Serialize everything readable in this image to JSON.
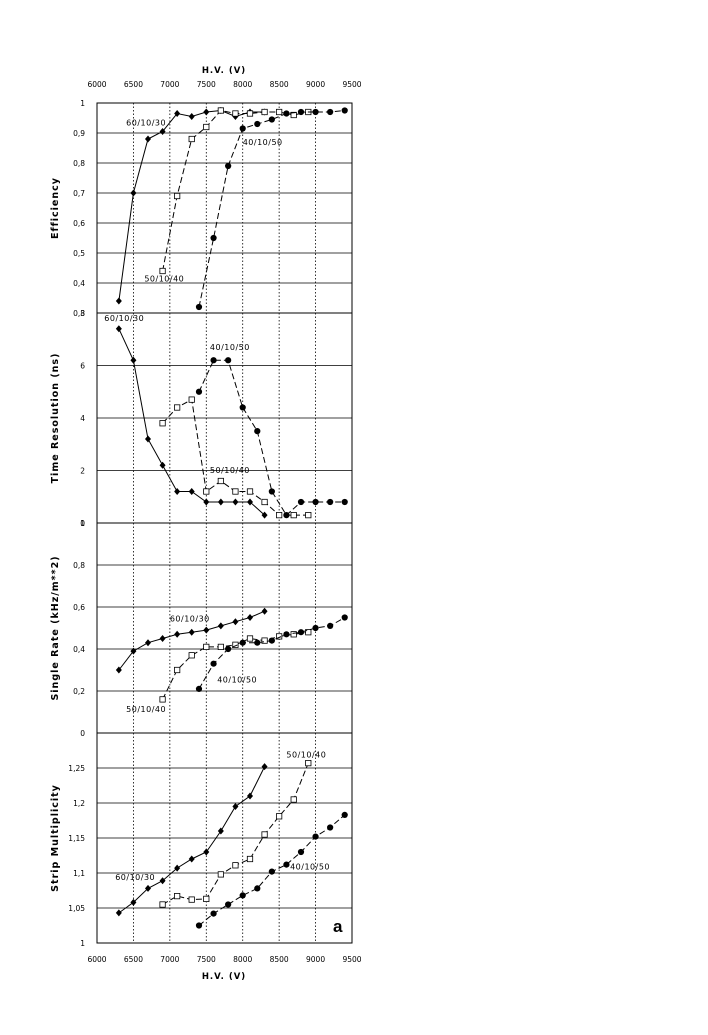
{
  "figure": {
    "x_title_top": "H.V.   (V)",
    "x_title_bottom": "H.V.   (V)",
    "panel_letter": "a",
    "x_ticks": [
      6000,
      6500,
      7000,
      7500,
      8000,
      8500,
      9000,
      9500
    ]
  },
  "chart_data": [
    {
      "type": "line",
      "ylabel": "Efficiency",
      "xlim": [
        6000,
        9500
      ],
      "ylim": [
        0.3,
        1
      ],
      "y_ticks": [
        0.3,
        0.4,
        0.5,
        0.6,
        0.7,
        0.8,
        0.9,
        1
      ],
      "y_tick_labels": [
        "0,3",
        "0,4",
        "0,5",
        "0,6",
        "0,7",
        "0,8",
        "0,9",
        "1"
      ],
      "series": [
        {
          "name": "60/10/30",
          "marker": "diamond",
          "dash": "solid",
          "x": [
            6300,
            6500,
            6700,
            6900,
            7100,
            7300,
            7500,
            7700,
            7900,
            8100,
            8300
          ],
          "y": [
            0.34,
            0.7,
            0.88,
            0.905,
            0.965,
            0.955,
            0.97,
            0.975,
            0.955,
            0.97,
            0.97
          ]
        },
        {
          "name": "50/10/40",
          "marker": "square",
          "dash": "dashed",
          "x": [
            6900,
            7100,
            7300,
            7500,
            7700,
            7900,
            8100,
            8300,
            8500,
            8700,
            8900
          ],
          "y": [
            0.44,
            0.69,
            0.88,
            0.92,
            0.975,
            0.965,
            0.965,
            0.97,
            0.97,
            0.96,
            0.97
          ]
        },
        {
          "name": "40/10/50",
          "marker": "circle",
          "dash": "dashed",
          "x": [
            7400,
            7600,
            7800,
            8000,
            8200,
            8400,
            8600,
            8800,
            9000,
            9200,
            9400
          ],
          "y": [
            0.32,
            0.55,
            0.79,
            0.915,
            0.93,
            0.945,
            0.965,
            0.97,
            0.97,
            0.97,
            0.975
          ]
        }
      ],
      "annotations": [
        {
          "text": "60/10/30",
          "x": 6400,
          "y": 0.925
        },
        {
          "text": "50/10/40",
          "x": 6650,
          "y": 0.405
        },
        {
          "text": "40/10/50",
          "x": 8000,
          "y": 0.86
        }
      ]
    },
    {
      "type": "line",
      "ylabel": "Time   Resolution   (ns)",
      "xlim": [
        6000,
        9500
      ],
      "ylim": [
        0,
        8
      ],
      "y_ticks": [
        0,
        2,
        4,
        6,
        8
      ],
      "y_tick_labels": [
        "0",
        "2",
        "4",
        "6",
        "8"
      ],
      "series": [
        {
          "name": "60/10/30",
          "marker": "diamond",
          "dash": "solid",
          "x": [
            6300,
            6500,
            6700,
            6900,
            7100,
            7300,
            7500,
            7700,
            7900,
            8100,
            8300
          ],
          "y": [
            7.4,
            6.2,
            3.2,
            2.2,
            1.2,
            1.2,
            0.8,
            0.8,
            0.8,
            0.8,
            0.3
          ]
        },
        {
          "name": "50/10/40",
          "marker": "square",
          "dash": "dashed",
          "x": [
            6900,
            7100,
            7300,
            7500,
            7700,
            7900,
            8100,
            8300,
            8500,
            8700,
            8900
          ],
          "y": [
            3.8,
            4.4,
            4.7,
            1.2,
            1.6,
            1.2,
            1.2,
            0.8,
            0.3,
            0.3,
            0.3
          ]
        },
        {
          "name": "40/10/50",
          "marker": "circle",
          "dash": "dashed",
          "x": [
            7400,
            7600,
            7800,
            8000,
            8200,
            8400,
            8600,
            8800,
            9000,
            9200,
            9400
          ],
          "y": [
            5.0,
            6.2,
            6.2,
            4.4,
            3.5,
            1.2,
            0.3,
            0.8,
            0.8,
            0.8,
            0.8
          ]
        }
      ],
      "annotations": [
        {
          "text": "60/10/30",
          "x": 6100,
          "y": 7.7
        },
        {
          "text": "40/10/50",
          "x": 7550,
          "y": 6.6
        },
        {
          "text": "50/10/40",
          "x": 7550,
          "y": 1.9
        }
      ]
    },
    {
      "type": "line",
      "ylabel": "Single       Rate   (kHz/m**2)",
      "xlim": [
        6000,
        9500
      ],
      "ylim": [
        0,
        1
      ],
      "y_ticks": [
        0,
        0.2,
        0.4,
        0.6,
        0.8,
        1
      ],
      "y_tick_labels": [
        "0",
        "0,2",
        "0,4",
        "0,6",
        "0,8",
        "1"
      ],
      "series": [
        {
          "name": "60/10/30",
          "marker": "diamond",
          "dash": "solid",
          "x": [
            6300,
            6500,
            6700,
            6900,
            7100,
            7300,
            7500,
            7700,
            7900,
            8100,
            8300
          ],
          "y": [
            0.3,
            0.39,
            0.43,
            0.45,
            0.47,
            0.48,
            0.49,
            0.51,
            0.53,
            0.55,
            0.58
          ]
        },
        {
          "name": "50/10/40",
          "marker": "square",
          "dash": "dashed",
          "x": [
            6900,
            7100,
            7300,
            7500,
            7700,
            7900,
            8100,
            8300,
            8500,
            8700,
            8900
          ],
          "y": [
            0.16,
            0.3,
            0.37,
            0.41,
            0.41,
            0.42,
            0.45,
            0.44,
            0.46,
            0.47,
            0.48
          ]
        },
        {
          "name": "40/10/50",
          "marker": "circle",
          "dash": "dashed",
          "x": [
            7400,
            7600,
            7800,
            8000,
            8200,
            8400,
            8600,
            8800,
            9000,
            9200,
            9400
          ],
          "y": [
            0.21,
            0.33,
            0.4,
            0.43,
            0.43,
            0.44,
            0.47,
            0.48,
            0.5,
            0.51,
            0.55
          ]
        }
      ],
      "annotations": [
        {
          "text": "60/10/30",
          "x": 7000,
          "y": 0.53
        },
        {
          "text": "50/10/40",
          "x": 6400,
          "y": 0.1
        },
        {
          "text": "40/10/50",
          "x": 7650,
          "y": 0.24
        }
      ]
    },
    {
      "type": "line",
      "ylabel": "Strip      Multiplicity",
      "xlim": [
        6000,
        9500
      ],
      "ylim": [
        1,
        1.3
      ],
      "y_ticks": [
        1,
        1.05,
        1.1,
        1.15,
        1.2,
        1.25
      ],
      "y_tick_labels": [
        "1",
        "1,05",
        "1,1",
        "1,15",
        "1,2",
        "1,25"
      ],
      "series": [
        {
          "name": "60/10/30",
          "marker": "diamond",
          "dash": "solid",
          "x": [
            6300,
            6500,
            6700,
            6900,
            7100,
            7300,
            7500,
            7700,
            7900,
            8100,
            8300
          ],
          "y": [
            1.043,
            1.058,
            1.078,
            1.089,
            1.107,
            1.12,
            1.13,
            1.16,
            1.195,
            1.21,
            1.252
          ]
        },
        {
          "name": "50/10/40",
          "marker": "square",
          "dash": "dashed",
          "x": [
            6900,
            7100,
            7300,
            7500,
            7700,
            7900,
            8100,
            8300,
            8500,
            8700,
            8900
          ],
          "y": [
            1.055,
            1.067,
            1.062,
            1.063,
            1.098,
            1.111,
            1.12,
            1.155,
            1.181,
            1.205,
            1.257
          ]
        },
        {
          "name": "40/10/50",
          "marker": "circle",
          "dash": "dashed",
          "x": [
            7400,
            7600,
            7800,
            8000,
            8200,
            8400,
            8600,
            8800,
            9000,
            9200,
            9400
          ],
          "y": [
            1.025,
            1.042,
            1.055,
            1.068,
            1.078,
            1.102,
            1.112,
            1.13,
            1.152,
            1.165,
            1.183
          ]
        }
      ],
      "annotations": [
        {
          "text": "60/10/30",
          "x": 6250,
          "y": 1.09
        },
        {
          "text": "50/10/40",
          "x": 8600,
          "y": 1.265
        },
        {
          "text": "40/10/50",
          "x": 8650,
          "y": 1.105
        }
      ]
    }
  ]
}
